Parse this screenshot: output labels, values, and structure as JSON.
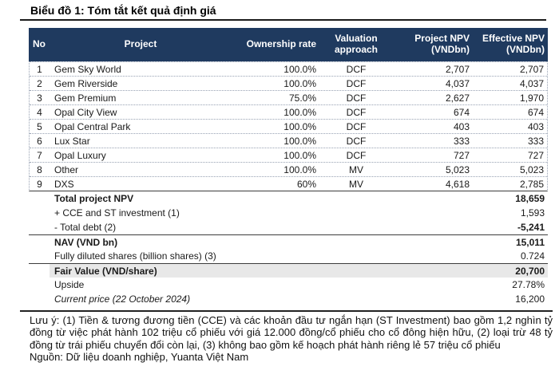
{
  "title": "Biểu đồ 1: Tóm tắt kết quả định giá",
  "colors": {
    "header_bg": "#1f3a5f",
    "header_text": "#ffffff",
    "highlight_bg": "#e8e8e8",
    "row_divider": "#98a2b3"
  },
  "table": {
    "columns": [
      "No",
      "Project",
      "Ownership rate",
      "Valuation approach",
      "Project NPV (VNDbn)",
      "Effective NPV (VNDbn)"
    ],
    "rows": [
      {
        "no": "1",
        "project": "Gem Sky World",
        "ownership": "100.0%",
        "approach": "DCF",
        "project_npv": "2,707",
        "effective_npv": "2,707"
      },
      {
        "no": "2",
        "project": "Gem Riverside",
        "ownership": "100.0%",
        "approach": "DCF",
        "project_npv": "4,037",
        "effective_npv": "4,037"
      },
      {
        "no": "3",
        "project": "Gem Premium",
        "ownership": "75.0%",
        "approach": "DCF",
        "project_npv": "2,627",
        "effective_npv": "1,970"
      },
      {
        "no": "4",
        "project": "Opal City View",
        "ownership": "100.0%",
        "approach": "DCF",
        "project_npv": "674",
        "effective_npv": "674"
      },
      {
        "no": "5",
        "project": "Opal Central Park",
        "ownership": "100.0%",
        "approach": "DCF",
        "project_npv": "403",
        "effective_npv": "403"
      },
      {
        "no": "6",
        "project": "Lux Star",
        "ownership": "100.0%",
        "approach": "DCF",
        "project_npv": "333",
        "effective_npv": "333"
      },
      {
        "no": "7",
        "project": "Opal Luxury",
        "ownership": "100.0%",
        "approach": "DCF",
        "project_npv": "727",
        "effective_npv": "727"
      },
      {
        "no": "8",
        "project": "Other",
        "ownership": "100.0%",
        "approach": "MV",
        "project_npv": "5,023",
        "effective_npv": "5,023"
      },
      {
        "no": "9",
        "project": "DXS",
        "ownership": "60%",
        "approach": "MV",
        "project_npv": "4,618",
        "effective_npv": "2,785"
      }
    ],
    "summary": [
      {
        "label": "Total project NPV",
        "value": "18,659",
        "bold_label": true,
        "bold_value": true,
        "rule_above": false,
        "highlight": false,
        "italic_label": false
      },
      {
        "label": "+ CCE and ST investment (1)",
        "value": "1,593",
        "bold_label": false,
        "bold_value": false,
        "rule_above": false,
        "highlight": false,
        "italic_label": false
      },
      {
        "label": "- Total debt (2)",
        "value": "-5,241",
        "bold_label": false,
        "bold_value": true,
        "rule_above": false,
        "highlight": false,
        "italic_label": false
      },
      {
        "label": "NAV (VND bn)",
        "value": "15,011",
        "bold_label": true,
        "bold_value": true,
        "rule_above": true,
        "highlight": false,
        "italic_label": false
      },
      {
        "label": "Fully diluted shares (billion shares) (3)",
        "value": "0.724",
        "bold_label": false,
        "bold_value": false,
        "rule_above": false,
        "highlight": false,
        "italic_label": false
      },
      {
        "label": "Fair Value (VND/share)",
        "value": "20,700",
        "bold_label": true,
        "bold_value": true,
        "rule_above": true,
        "highlight": true,
        "italic_label": false
      },
      {
        "label": "Upside",
        "value": "27.78%",
        "bold_label": false,
        "bold_value": false,
        "rule_above": false,
        "highlight": false,
        "italic_label": false
      },
      {
        "label": "Current price (22 October 2024)",
        "value": "16,200",
        "bold_label": false,
        "bold_value": false,
        "rule_above": false,
        "highlight": false,
        "italic_label": true
      }
    ]
  },
  "notes": "Lưu ý: (1) Tiền & tương đương tiền (CCE) và các khoản đầu tư ngắn hạn (ST Investment) bao gồm 1,2 nghìn tỷ đồng từ việc phát hành 102 triệu cổ phiếu với giá 12.000 đồng/cổ phiếu cho cổ đông hiện hữu, (2) loại trừ 48 tỷ đồng từ trái phiếu chuyển đổi còn lại, (3) không bao gồm kế hoạch phát hành riêng lẻ 57 triệu cổ phiếu",
  "source": "Nguồn: Dữ liệu doanh nghiệp, Yuanta Việt Nam"
}
